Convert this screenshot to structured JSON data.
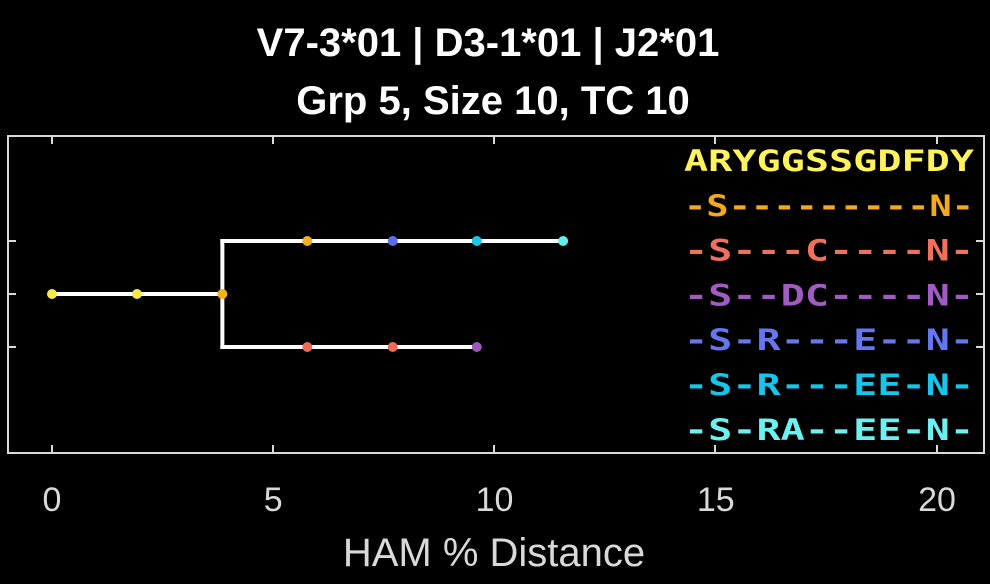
{
  "chart_data": {
    "type": "tree",
    "title": "V7-3*01 | D3-1*01 | J2*01",
    "subtitle": "Grp 5, Size 10, TC 10",
    "xlabel": "HAM % Distance",
    "xlim": [
      -1,
      21
    ],
    "xticks": [
      0,
      5,
      10,
      15,
      20
    ],
    "grid": false,
    "background": "#000000",
    "axis_color": "#d9d9d9",
    "lines": [
      {
        "name": "root-branch",
        "x1": 0,
        "y1": 2,
        "x2": 3.85,
        "y2": 2
      },
      {
        "name": "split-vertical",
        "x1": 3.85,
        "y1": 1,
        "x2": 3.85,
        "y2": 3
      },
      {
        "name": "upper-branch",
        "x1": 3.85,
        "y1": 1,
        "x2": 11.55,
        "y2": 1
      },
      {
        "name": "lower-branch",
        "x1": 3.85,
        "y1": 3,
        "x2": 9.6,
        "y2": 3
      }
    ],
    "nodes": [
      {
        "x": 0,
        "y": 2,
        "color": "#f6e94a"
      },
      {
        "x": 1.92,
        "y": 2,
        "color": "#f6e94a"
      },
      {
        "x": 3.85,
        "y": 2,
        "color": "#f2b21e"
      },
      {
        "x": 5.77,
        "y": 1,
        "color": "#f2b21e"
      },
      {
        "x": 7.7,
        "y": 1,
        "color": "#5b6ee8"
      },
      {
        "x": 9.6,
        "y": 1,
        "color": "#1bc9e6"
      },
      {
        "x": 11.55,
        "y": 1,
        "color": "#5ef0ee"
      },
      {
        "x": 5.77,
        "y": 3,
        "color": "#ee6a5a"
      },
      {
        "x": 7.7,
        "y": 3,
        "color": "#ee6a5a"
      },
      {
        "x": 9.6,
        "y": 3,
        "color": "#9b58b8"
      }
    ],
    "sequences": [
      {
        "text": "ARYGGSSGDFDY",
        "color": "#fff25c"
      },
      {
        "text": "-S---------N-",
        "color": "#f4a91c"
      },
      {
        "text": "-S---C----N-",
        "color": "#f0705e"
      },
      {
        "text": "-S--DC----N-",
        "color": "#a05cc0"
      },
      {
        "text": "-S-R---E--N-",
        "color": "#6477f0"
      },
      {
        "text": "-S-R---EE-N-",
        "color": "#16c6ea"
      },
      {
        "text": "-S-RA--EE-N-",
        "color": "#6cf0f0"
      }
    ]
  }
}
